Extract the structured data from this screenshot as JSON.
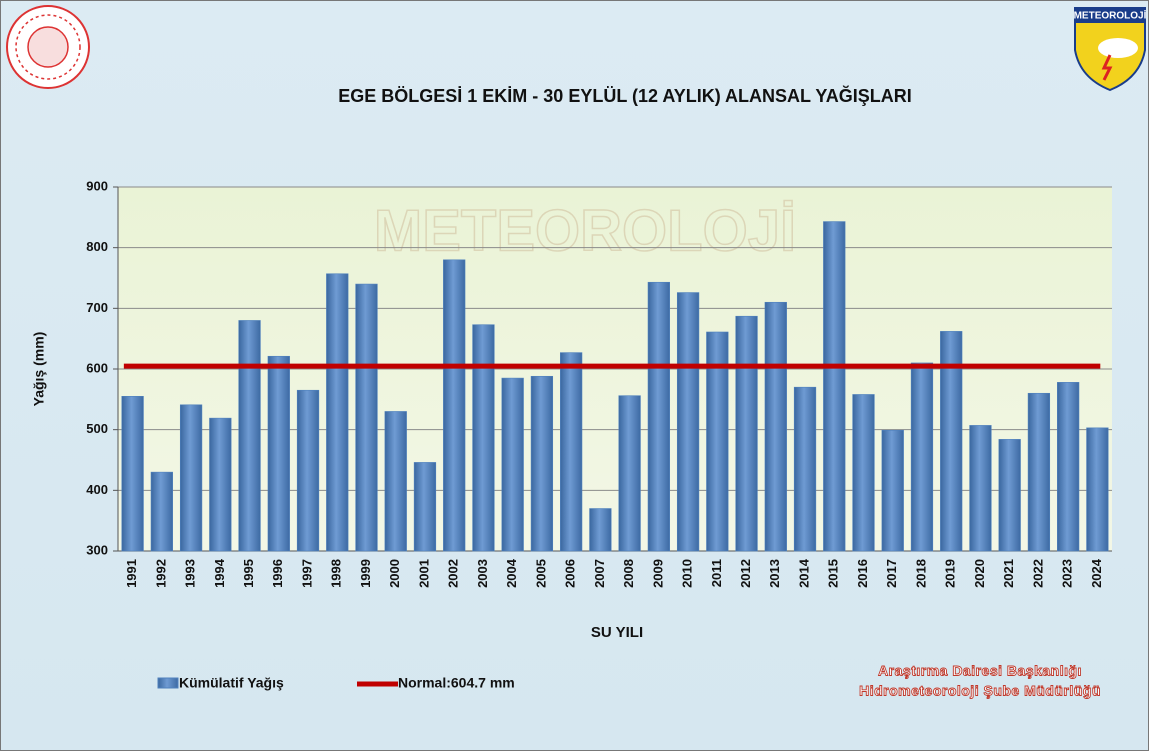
{
  "chart_data": {
    "type": "bar",
    "title": "EGE BÖLGESİ  1 EKİM - 30 EYLÜL (12 AYLIK) ALANSAL YAĞIŞLARI",
    "x_label": "SU YILI",
    "y_label": "Yağış (mm)",
    "categories": [
      "1991",
      "1992",
      "1993",
      "1994",
      "1995",
      "1996",
      "1997",
      "1998",
      "1999",
      "2000",
      "2001",
      "2002",
      "2003",
      "2004",
      "2005",
      "2006",
      "2007",
      "2008",
      "2009",
      "2010",
      "2011",
      "2012",
      "2013",
      "2014",
      "2015",
      "2016",
      "2017",
      "2018",
      "2019",
      "2020",
      "2021",
      "2022",
      "2023",
      "2024"
    ],
    "series": [
      {
        "name": "Kümülatif Yağış",
        "color": "#4f81bd",
        "values": [
          555,
          430,
          541,
          519,
          680,
          621,
          565,
          757,
          740,
          530,
          446,
          780,
          673,
          585,
          588,
          627,
          370,
          556,
          743,
          726,
          661,
          687,
          710,
          570,
          843,
          558,
          499,
          610,
          662,
          507,
          484,
          560,
          578,
          503
        ]
      }
    ],
    "normal": {
      "name": "Normal:604.7 mm",
      "value": 604.7,
      "color": "#c00000"
    },
    "ylim": [
      300,
      900
    ],
    "yticks": [
      300,
      400,
      500,
      600,
      700,
      800,
      900
    ],
    "grid": true,
    "watermark": "METEOROLOJİ",
    "logo_text": "METEOROLOJİ",
    "credits": [
      "Araştırma Dairesi Başkanlığı",
      "Hidrometeoroloji Şube Müdürlüğü"
    ]
  }
}
